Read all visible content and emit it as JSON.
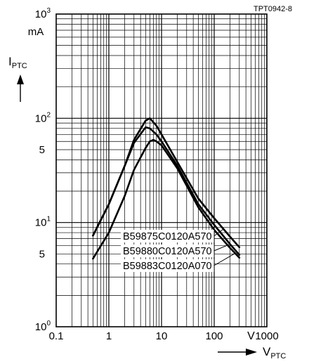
{
  "chart_data": {
    "type": "line",
    "figure_code": "TPT0942-8",
    "x_scale": "log",
    "y_scale": "log",
    "xlim": [
      0.1,
      1000
    ],
    "ylim": [
      1,
      1000
    ],
    "grid": true,
    "y_unit": "mA",
    "x_unit": "V",
    "y_axis_symbol": "I",
    "y_axis_subscript": "PTC",
    "x_axis_symbol": "V",
    "x_axis_subscript": "PTC",
    "x_ticks": [
      {
        "value": 0.1,
        "label": "0.1"
      },
      {
        "value": 1,
        "label": "1"
      },
      {
        "value": 10,
        "label": "10"
      },
      {
        "value": 100,
        "label": "100"
      },
      {
        "value": 1000,
        "label": "1000"
      }
    ],
    "y_ticks": [
      {
        "value": 1,
        "base": "10",
        "exp": "0"
      },
      {
        "value": 10,
        "base": "10",
        "exp": "1"
      },
      {
        "value": 100,
        "base": "10",
        "exp": "2"
      },
      {
        "value": 1000,
        "base": "10",
        "exp": "3"
      }
    ],
    "y_minor_labels": [
      {
        "value": 5,
        "label": "5"
      },
      {
        "value": 50,
        "label": "5"
      }
    ],
    "series": [
      {
        "name": "B59875C0120A570",
        "x": [
          0.5,
          1,
          2,
          3,
          5,
          6,
          8,
          10,
          20,
          50,
          100,
          200,
          300
        ],
        "y": [
          7.5,
          15,
          35,
          62,
          95,
          100,
          85,
          70,
          38,
          17,
          11,
          7.3,
          5.8
        ]
      },
      {
        "name": "B59880C0120A570",
        "x": [
          0.5,
          1,
          2,
          3,
          5,
          6,
          8,
          10,
          20,
          50,
          100,
          200,
          300
        ],
        "y": [
          7.5,
          15,
          35,
          58,
          82,
          80,
          70,
          60,
          35,
          15,
          9.5,
          6.2,
          4.9
        ]
      },
      {
        "name": "B59883C0120A070",
        "x": [
          0.5,
          1,
          2,
          3,
          5,
          6,
          7,
          8,
          10,
          20,
          50,
          100,
          200,
          300
        ],
        "y": [
          4.5,
          8,
          18,
          32,
          52,
          60,
          62,
          60,
          55,
          33,
          14,
          8.5,
          5.7,
          4.6
        ]
      }
    ]
  }
}
